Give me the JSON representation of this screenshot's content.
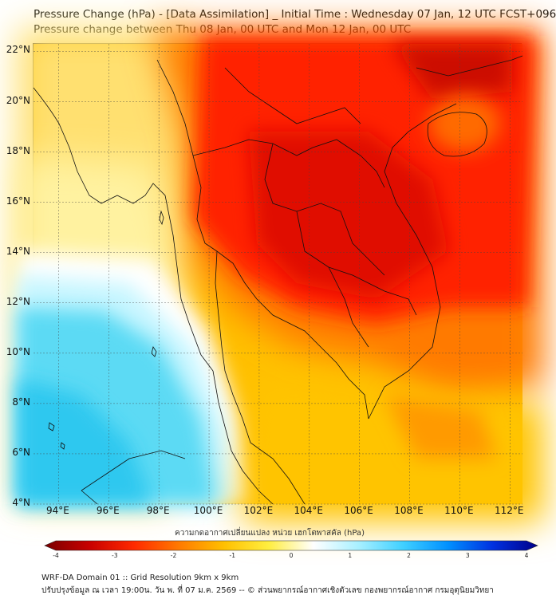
{
  "header": {
    "title": "Pressure Change (hPa) - [Data Assimilation] _ Initial Time : Wednesday 07 Jan, 12 UTC FCST+096",
    "subtitle": "Pressure change between Thu 08 Jan, 00 UTC and Mon 12 Jan, 00 UTC"
  },
  "map": {
    "lat_labels": [
      "22°N",
      "20°N",
      "18°N",
      "16°N",
      "14°N",
      "12°N",
      "10°N",
      "8°N",
      "6°N",
      "4°N"
    ],
    "lon_labels": [
      "94°E",
      "96°E",
      "98°E",
      "100°E",
      "102°E",
      "104°E",
      "106°E",
      "108°E",
      "110°E",
      "112°E"
    ],
    "lat_range": [
      4,
      22.3
    ],
    "lon_range": [
      93,
      112.5
    ],
    "field": "pressure change (hPa)"
  },
  "colorbar": {
    "title": "ความกดอากาศเปลี่ยนแปลง หน่วย เฮกโตพาสคัล (hPa)",
    "ticks": [
      "-4",
      "-3",
      "-2",
      "-1",
      "0",
      "1",
      "2",
      "3",
      "4"
    ],
    "range": [
      -4,
      4
    ],
    "colors": [
      "#7a0000",
      "#c80000",
      "#ff2a00",
      "#ff7a00",
      "#ffc000",
      "#ffee40",
      "#ffffff",
      "#a8f0ff",
      "#40d0ff",
      "#0090ff",
      "#0030e0",
      "#00008a"
    ]
  },
  "footer": {
    "line1": "WRF-DA Domain 01 :: Grid Resolution 9km x 9km",
    "line2": "ปรับปรุงข้อมูล ณ เวลา 19:00น. วัน พ. ที่ 07 ม.ค. 2569 -- © ส่วนพยากรณ์อากาศเชิงตัวเลข กองพยากรณ์อากาศ กรมอุตุนิยมวิทยา"
  }
}
